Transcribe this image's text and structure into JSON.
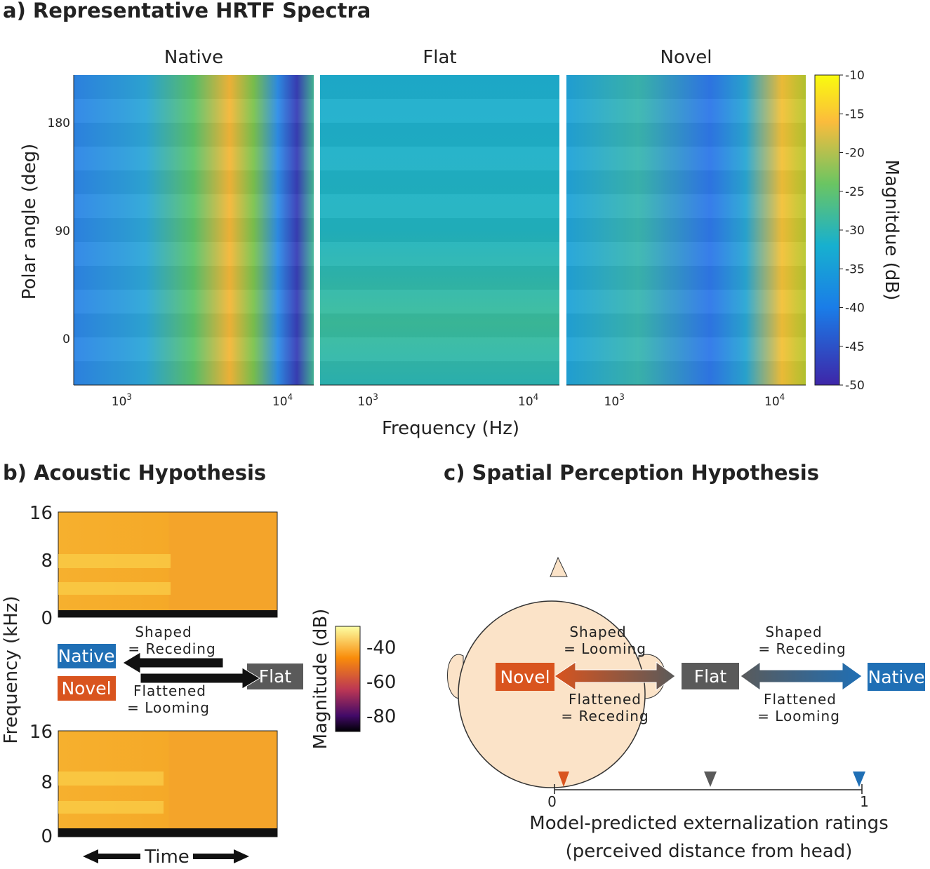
{
  "panel_a": {
    "title": "a) Representative HRTF Spectra",
    "subplots": [
      "Native",
      "Flat",
      "Novel"
    ],
    "y_label": "Polar angle (deg)",
    "y_ticks": [
      "180",
      "90",
      "0"
    ],
    "x_ticks": [
      {
        "base": "10",
        "exponent": "3"
      },
      {
        "base": "10",
        "exponent": "4"
      }
    ],
    "x_label": "Frequency (Hz)",
    "colorbar_label": "Magnitdue (dB)",
    "colorbar_ticks": [
      "-10",
      "-15",
      "-20",
      "-25",
      "-30",
      "-35",
      "-40",
      "-45",
      "-50"
    ]
  },
  "panel_b": {
    "title": "b) Acoustic Hypothesis",
    "y_label": "Frequency (kHz)",
    "y_ticks": [
      "16",
      "8",
      "0"
    ],
    "boxes": {
      "native": "Native",
      "novel": "Novel",
      "flat": "Flat"
    },
    "upper_label": [
      "Shaped",
      "= Receding"
    ],
    "lower_label": [
      "Flattened",
      "= Looming"
    ],
    "colorbar_label": "Magnitude (dB)",
    "colorbar_ticks": [
      "-40",
      "-60",
      "-80"
    ],
    "x_label": "Time"
  },
  "panel_c": {
    "title": "c) Spatial Perception Hypothesis",
    "boxes": {
      "novel": "Novel",
      "flat": "Flat",
      "native": "Native"
    },
    "left_upper": [
      "Shaped",
      "= Looming"
    ],
    "left_lower": [
      "Flattened",
      "= Receding"
    ],
    "right_upper": [
      "Shaped",
      "= Receding"
    ],
    "right_lower": [
      "Flattened",
      "= Looming"
    ],
    "axis_ticks": [
      "0",
      "1"
    ],
    "axis_label": [
      "Model-predicted externalization ratings",
      "(perceived distance from head)"
    ]
  }
}
